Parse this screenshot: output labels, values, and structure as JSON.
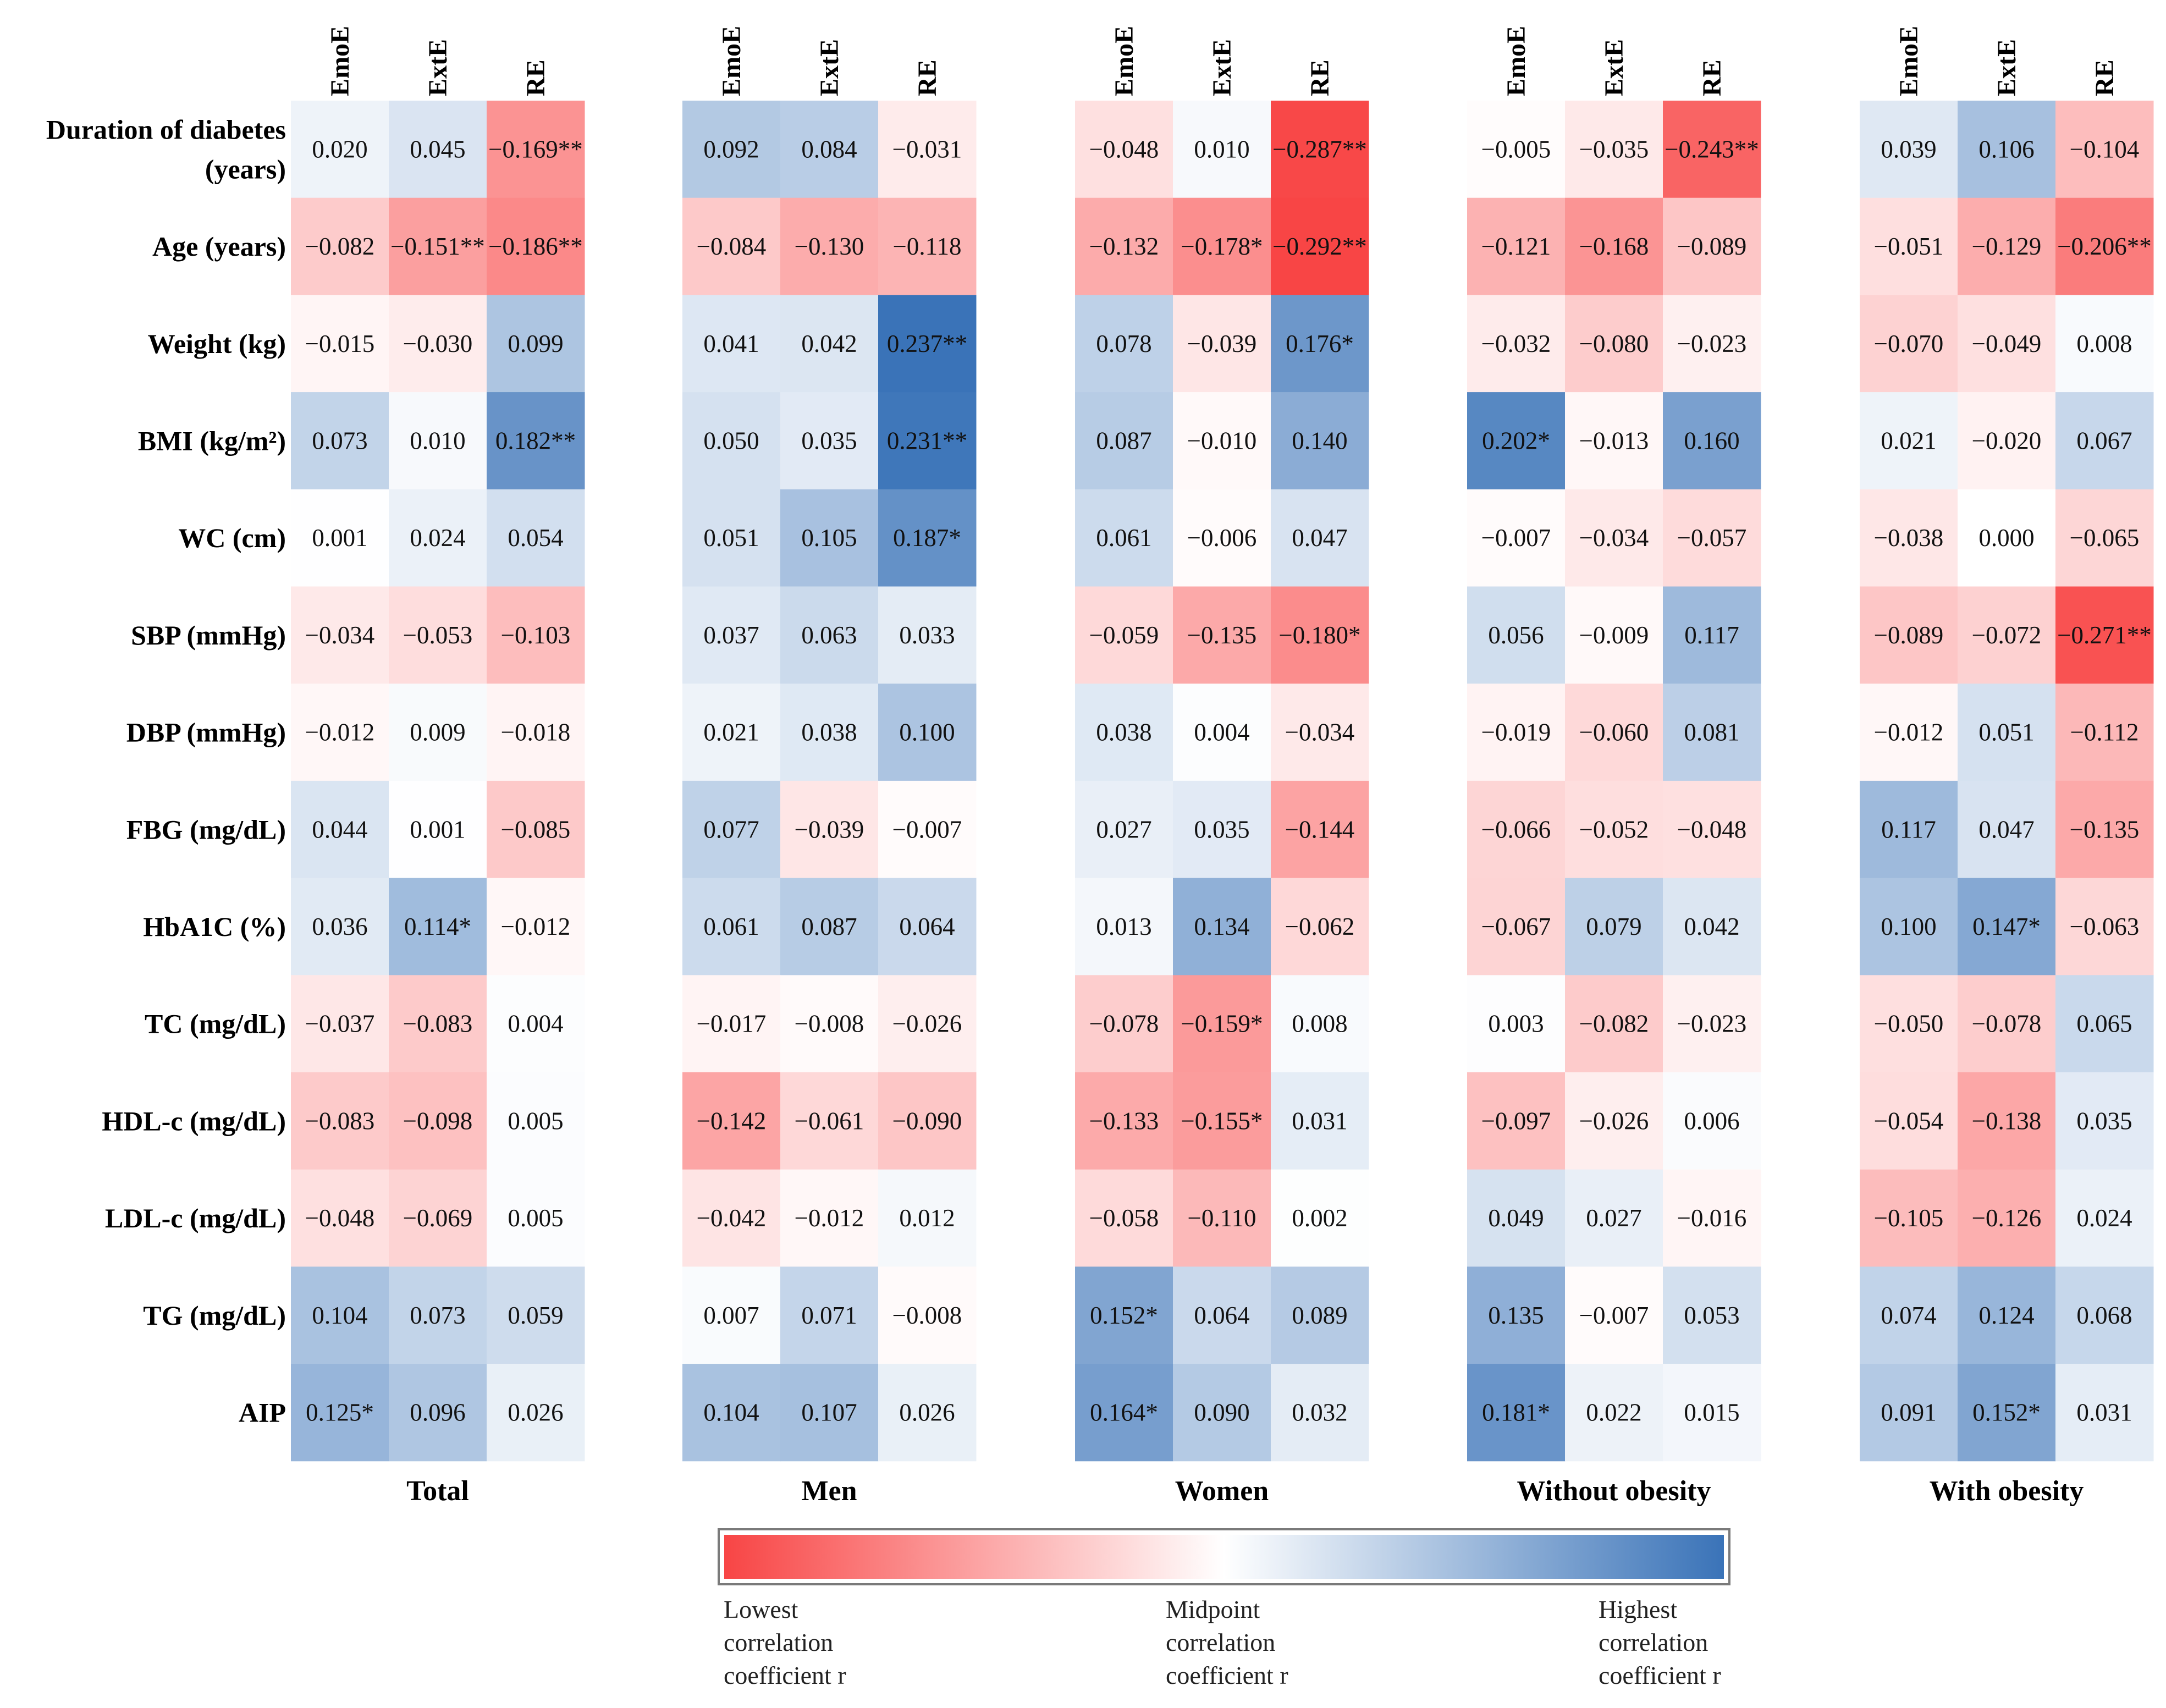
{
  "chart_data": {
    "type": "heatmap",
    "title": "",
    "rows": [
      {
        "label": "Duration of diabetes\n(years)"
      },
      {
        "label": "Age (years)"
      },
      {
        "label": "Weight (kg)"
      },
      {
        "label": "BMI (kg/m²)"
      },
      {
        "label": "WC (cm)"
      },
      {
        "label": "SBP (mmHg)"
      },
      {
        "label": "DBP (mmHg)"
      },
      {
        "label": "FBG (mg/dL)"
      },
      {
        "label": "HbA1C (%)"
      },
      {
        "label": "TC (mg/dL)"
      },
      {
        "label": "HDL-c (mg/dL)"
      },
      {
        "label": "LDL-c (mg/dL)"
      },
      {
        "label": "TG (mg/dL)"
      },
      {
        "label": "AIP"
      }
    ],
    "columns": [
      "EmoE",
      "ExtE",
      "RE"
    ],
    "color_scale": {
      "min": -0.292,
      "max": 0.237,
      "low_color": "#f84545",
      "mid_color": "#ffffff",
      "high_color": "#3a73b8"
    },
    "panels": [
      {
        "name": "Total",
        "values": [
          [
            0.02,
            0.045,
            -0.169
          ],
          [
            -0.082,
            -0.151,
            -0.186
          ],
          [
            -0.015,
            -0.03,
            0.099
          ],
          [
            0.073,
            0.01,
            0.182
          ],
          [
            0.001,
            0.024,
            0.054
          ],
          [
            -0.034,
            -0.053,
            -0.103
          ],
          [
            -0.012,
            0.009,
            -0.018
          ],
          [
            0.044,
            0.001,
            -0.085
          ],
          [
            0.036,
            0.114,
            -0.012
          ],
          [
            -0.037,
            -0.083,
            0.004
          ],
          [
            -0.083,
            -0.098,
            0.005
          ],
          [
            -0.048,
            -0.069,
            0.005
          ],
          [
            0.104,
            0.073,
            0.059
          ],
          [
            0.125,
            0.096,
            0.026
          ]
        ],
        "labels": [
          [
            "0.020",
            "0.045",
            "−0.169**"
          ],
          [
            "−0.082",
            "−0.151**",
            "−0.186**"
          ],
          [
            "−0.015",
            "−0.030",
            "0.099"
          ],
          [
            "0.073",
            "0.010",
            "0.182**"
          ],
          [
            "0.001",
            "0.024",
            "0.054"
          ],
          [
            "−0.034",
            "−0.053",
            "−0.103"
          ],
          [
            "−0.012",
            "0.009",
            "−0.018"
          ],
          [
            "0.044",
            "0.001",
            "−0.085"
          ],
          [
            "0.036",
            "0.114*",
            "−0.012"
          ],
          [
            "−0.037",
            "−0.083",
            "0.004"
          ],
          [
            "−0.083",
            "−0.098",
            "0.005"
          ],
          [
            "−0.048",
            "−0.069",
            "0.005"
          ],
          [
            "0.104",
            "0.073",
            "0.059"
          ],
          [
            "0.125*",
            "0.096",
            "0.026"
          ]
        ]
      },
      {
        "name": "Men",
        "values": [
          [
            0.092,
            0.084,
            -0.031
          ],
          [
            -0.084,
            -0.13,
            -0.118
          ],
          [
            0.041,
            0.042,
            0.237
          ],
          [
            0.05,
            0.035,
            0.231
          ],
          [
            0.051,
            0.105,
            0.187
          ],
          [
            0.037,
            0.063,
            0.033
          ],
          [
            0.021,
            0.038,
            0.1
          ],
          [
            0.077,
            -0.039,
            -0.007
          ],
          [
            0.061,
            0.087,
            0.064
          ],
          [
            -0.017,
            -0.008,
            -0.026
          ],
          [
            -0.142,
            -0.061,
            -0.09
          ],
          [
            -0.042,
            -0.012,
            0.012
          ],
          [
            0.007,
            0.071,
            -0.008
          ],
          [
            0.104,
            0.107,
            0.026
          ]
        ],
        "labels": [
          [
            "0.092",
            "0.084",
            "−0.031"
          ],
          [
            "−0.084",
            "−0.130",
            "−0.118"
          ],
          [
            "0.041",
            "0.042",
            "0.237**"
          ],
          [
            "0.050",
            "0.035",
            "0.231**"
          ],
          [
            "0.051",
            "0.105",
            "0.187*"
          ],
          [
            "0.037",
            "0.063",
            "0.033"
          ],
          [
            "0.021",
            "0.038",
            "0.100"
          ],
          [
            "0.077",
            "−0.039",
            "−0.007"
          ],
          [
            "0.061",
            "0.087",
            "0.064"
          ],
          [
            "−0.017",
            "−0.008",
            "−0.026"
          ],
          [
            "−0.142",
            "−0.061",
            "−0.090"
          ],
          [
            "−0.042",
            "−0.012",
            "0.012"
          ],
          [
            "0.007",
            "0.071",
            "−0.008"
          ],
          [
            "0.104",
            "0.107",
            "0.026"
          ]
        ]
      },
      {
        "name": "Women",
        "values": [
          [
            -0.048,
            0.01,
            -0.287
          ],
          [
            -0.132,
            -0.178,
            -0.292
          ],
          [
            0.078,
            -0.039,
            0.176
          ],
          [
            0.087,
            -0.01,
            0.14
          ],
          [
            0.061,
            -0.006,
            0.047
          ],
          [
            -0.059,
            -0.135,
            -0.18
          ],
          [
            0.038,
            0.004,
            -0.034
          ],
          [
            0.027,
            0.035,
            -0.144
          ],
          [
            0.013,
            0.134,
            -0.062
          ],
          [
            -0.078,
            -0.159,
            0.008
          ],
          [
            -0.133,
            -0.155,
            0.031
          ],
          [
            -0.058,
            -0.11,
            0.002
          ],
          [
            0.152,
            0.064,
            0.089
          ],
          [
            0.164,
            0.09,
            0.032
          ]
        ],
        "labels": [
          [
            "−0.048",
            "0.010",
            "−0.287**"
          ],
          [
            "−0.132",
            "−0.178*",
            "−0.292**"
          ],
          [
            "0.078",
            "−0.039",
            "0.176*"
          ],
          [
            "0.087",
            "−0.010",
            "0.140"
          ],
          [
            "0.061",
            "−0.006",
            "0.047"
          ],
          [
            "−0.059",
            "−0.135",
            "−0.180*"
          ],
          [
            "0.038",
            "0.004",
            "−0.034"
          ],
          [
            "0.027",
            "0.035",
            "−0.144"
          ],
          [
            "0.013",
            "0.134",
            "−0.062"
          ],
          [
            "−0.078",
            "−0.159*",
            "0.008"
          ],
          [
            "−0.133",
            "−0.155*",
            "0.031"
          ],
          [
            "−0.058",
            "−0.110",
            "0.002"
          ],
          [
            "0.152*",
            "0.064",
            "0.089"
          ],
          [
            "0.164*",
            "0.090",
            "0.032"
          ]
        ]
      },
      {
        "name": "Without obesity",
        "values": [
          [
            -0.005,
            -0.035,
            -0.243
          ],
          [
            -0.121,
            -0.168,
            -0.089
          ],
          [
            -0.032,
            -0.08,
            -0.023
          ],
          [
            0.202,
            -0.013,
            0.16
          ],
          [
            -0.007,
            -0.034,
            -0.057
          ],
          [
            0.056,
            -0.009,
            0.117
          ],
          [
            -0.019,
            -0.06,
            0.081
          ],
          [
            -0.066,
            -0.052,
            -0.048
          ],
          [
            -0.067,
            0.079,
            0.042
          ],
          [
            0.003,
            -0.082,
            -0.023
          ],
          [
            -0.097,
            -0.026,
            0.006
          ],
          [
            0.049,
            0.027,
            -0.016
          ],
          [
            0.135,
            -0.007,
            0.053
          ],
          [
            0.181,
            0.022,
            0.015
          ]
        ],
        "labels": [
          [
            "−0.005",
            "−0.035",
            "−0.243**"
          ],
          [
            "−0.121",
            "−0.168",
            "−0.089"
          ],
          [
            "−0.032",
            "−0.080",
            "−0.023"
          ],
          [
            "0.202*",
            "−0.013",
            "0.160"
          ],
          [
            "−0.007",
            "−0.034",
            "−0.057"
          ],
          [
            "0.056",
            "−0.009",
            "0.117"
          ],
          [
            "−0.019",
            "−0.060",
            "0.081"
          ],
          [
            "−0.066",
            "−0.052",
            "−0.048"
          ],
          [
            "−0.067",
            "0.079",
            "0.042"
          ],
          [
            "0.003",
            "−0.082",
            "−0.023"
          ],
          [
            "−0.097",
            "−0.026",
            "0.006"
          ],
          [
            "0.049",
            "0.027",
            "−0.016"
          ],
          [
            "0.135",
            "−0.007",
            "0.053"
          ],
          [
            "0.181*",
            "0.022",
            "0.015"
          ]
        ]
      },
      {
        "name": "With obesity",
        "values": [
          [
            0.039,
            0.106,
            -0.104
          ],
          [
            -0.051,
            -0.129,
            -0.206
          ],
          [
            -0.07,
            -0.049,
            0.008
          ],
          [
            0.021,
            -0.02,
            0.067
          ],
          [
            -0.038,
            0.0,
            -0.065
          ],
          [
            -0.089,
            -0.072,
            -0.271
          ],
          [
            -0.012,
            0.051,
            -0.112
          ],
          [
            0.117,
            0.047,
            -0.135
          ],
          [
            0.1,
            0.147,
            -0.063
          ],
          [
            -0.05,
            -0.078,
            0.065
          ],
          [
            -0.054,
            -0.138,
            0.035
          ],
          [
            -0.105,
            -0.126,
            0.024
          ],
          [
            0.074,
            0.124,
            0.068
          ],
          [
            0.091,
            0.152,
            0.031
          ]
        ],
        "labels": [
          [
            "0.039",
            "0.106",
            "−0.104"
          ],
          [
            "−0.051",
            "−0.129",
            "−0.206**"
          ],
          [
            "−0.070",
            "−0.049",
            "0.008"
          ],
          [
            "0.021",
            "−0.020",
            "0.067"
          ],
          [
            "−0.038",
            "0.000",
            "−0.065"
          ],
          [
            "−0.089",
            "−0.072",
            "−0.271**"
          ],
          [
            "−0.012",
            "0.051",
            "−0.112"
          ],
          [
            "0.117",
            "0.047",
            "−0.135"
          ],
          [
            "0.100",
            "0.147*",
            "−0.063"
          ],
          [
            "−0.050",
            "−0.078",
            "0.065"
          ],
          [
            "−0.054",
            "−0.138",
            "0.035"
          ],
          [
            "−0.105",
            "−0.126",
            "0.024"
          ],
          [
            "0.074",
            "0.124",
            "0.068"
          ],
          [
            "0.091",
            "0.152*",
            "0.031"
          ]
        ]
      }
    ],
    "legend": {
      "low_label": "Lowest\ncorrelation\ncoefficient r",
      "mid_label": "Midpoint\ncorrelation\ncoefficient r",
      "high_label": "Highest\ncorrelation\ncoefficient r"
    }
  }
}
